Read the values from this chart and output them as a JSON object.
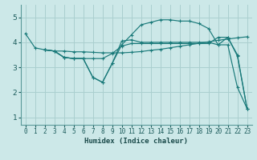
{
  "bg_color": "#cce8e8",
  "grid_color": "#aacfcf",
  "line_color": "#1a7a7a",
  "xlabel": "Humidex (Indice chaleur)",
  "xlim": [
    -0.5,
    23.5
  ],
  "ylim": [
    0.7,
    5.5
  ],
  "yticks": [
    1,
    2,
    3,
    4,
    5
  ],
  "xticks": [
    0,
    1,
    2,
    3,
    4,
    5,
    6,
    7,
    8,
    9,
    10,
    11,
    12,
    13,
    14,
    15,
    16,
    17,
    18,
    19,
    20,
    21,
    22,
    23
  ],
  "lines": [
    {
      "x": [
        0,
        1,
        2,
        3,
        4,
        5,
        6,
        7,
        8,
        9,
        10,
        11,
        12,
        13,
        14,
        15,
        16,
        17,
        18,
        19,
        20,
        21,
        22,
        23
      ],
      "y": [
        4.35,
        3.78,
        3.7,
        3.65,
        3.65,
        3.62,
        3.62,
        3.6,
        3.58,
        3.58,
        3.58,
        3.6,
        3.63,
        3.68,
        3.72,
        3.78,
        3.84,
        3.9,
        3.96,
        4.02,
        4.08,
        4.13,
        4.18,
        4.22
      ]
    },
    {
      "x": [
        2,
        3,
        4,
        5,
        6,
        7,
        8,
        9,
        10,
        11,
        12,
        13,
        14,
        15,
        16,
        17,
        18,
        19,
        20,
        21,
        22,
        23
      ],
      "y": [
        3.7,
        3.65,
        3.4,
        3.35,
        3.35,
        2.6,
        2.4,
        3.15,
        4.05,
        4.1,
        4.0,
        4.0,
        4.0,
        4.0,
        4.0,
        4.0,
        4.0,
        4.0,
        3.9,
        4.2,
        3.5,
        1.35
      ]
    },
    {
      "x": [
        2,
        3,
        4,
        5,
        6,
        7,
        8,
        9,
        10,
        11,
        12,
        13,
        14,
        15,
        16,
        17,
        18,
        19,
        20,
        21,
        22,
        23
      ],
      "y": [
        3.7,
        3.65,
        3.4,
        3.35,
        3.35,
        2.6,
        2.4,
        3.15,
        3.9,
        4.3,
        4.7,
        4.8,
        4.9,
        4.9,
        4.85,
        4.85,
        4.75,
        4.55,
        3.9,
        3.9,
        2.2,
        1.35
      ]
    },
    {
      "x": [
        2,
        3,
        4,
        5,
        6,
        7,
        8,
        9,
        10,
        11,
        12,
        13,
        14,
        15,
        16,
        17,
        18,
        19,
        20,
        21,
        22,
        23
      ],
      "y": [
        3.7,
        3.65,
        3.4,
        3.35,
        3.35,
        3.35,
        3.35,
        3.55,
        3.85,
        3.95,
        3.95,
        3.95,
        3.95,
        3.95,
        3.95,
        3.95,
        3.95,
        3.95,
        4.2,
        4.2,
        3.45,
        1.35
      ]
    }
  ]
}
